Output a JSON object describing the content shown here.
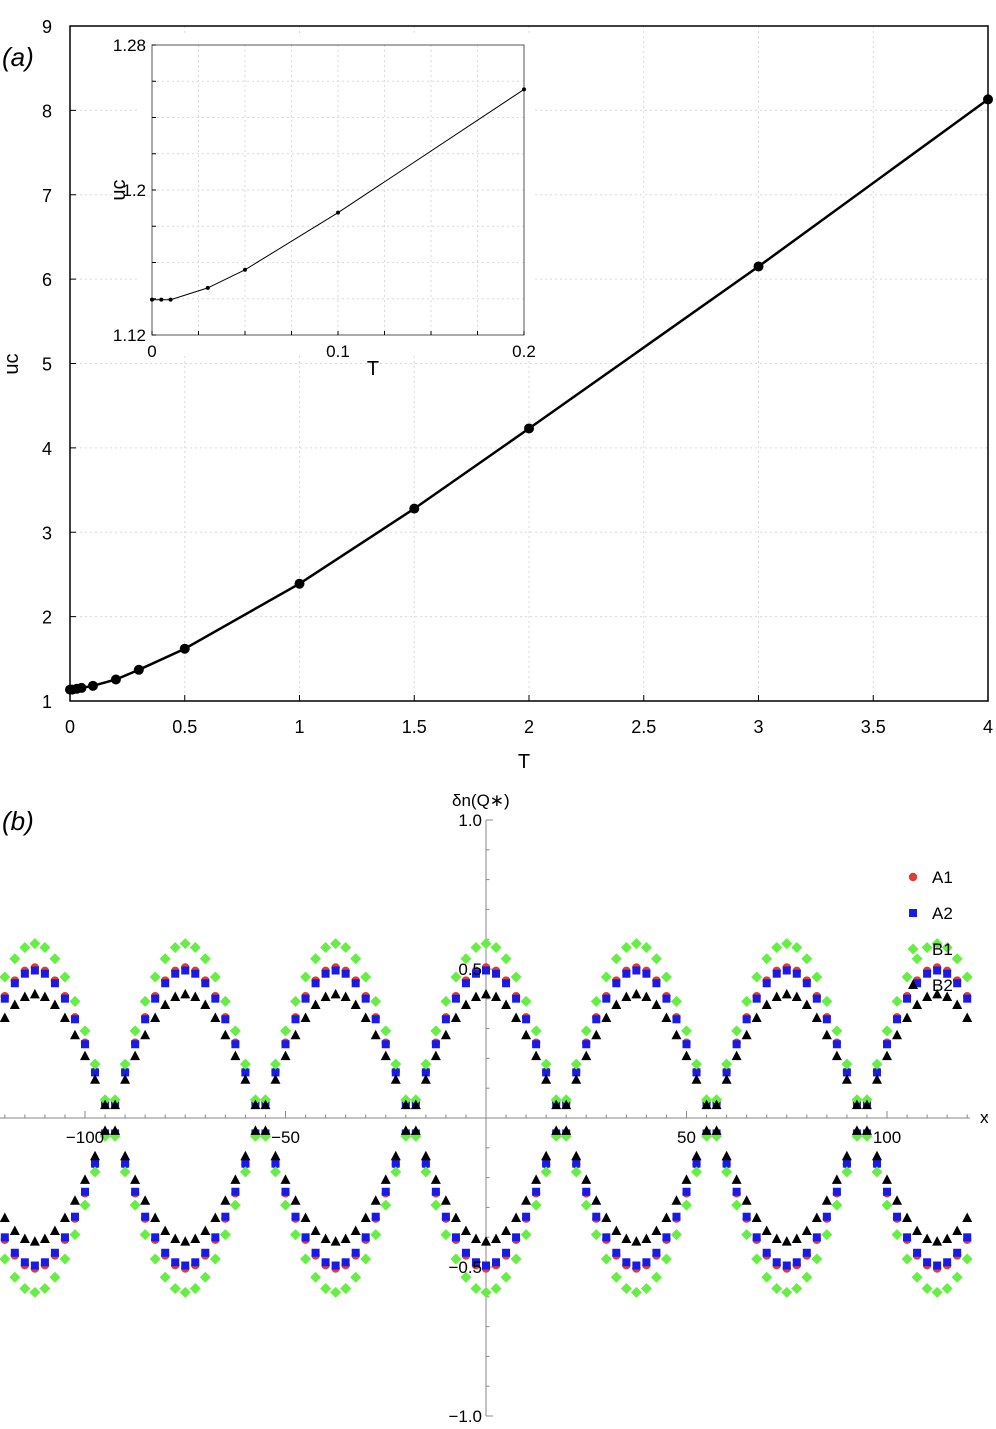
{
  "chart_data": [
    {
      "type": "line",
      "panel_label": "(a)",
      "xlabel": "T",
      "ylabel": "uc",
      "xlim": [
        0,
        4
      ],
      "ylim": [
        1,
        9
      ],
      "xticks": [
        "0",
        "0.5",
        "1",
        "1.5",
        "2",
        "2.5",
        "3",
        "3.5",
        "4"
      ],
      "yticks": [
        "1",
        "2",
        "3",
        "4",
        "5",
        "6",
        "7",
        "8",
        "9"
      ],
      "grid": true,
      "series": [
        {
          "x": [
            0,
            0.01,
            0.03,
            0.05,
            0.1,
            0.2,
            0.3,
            0.5,
            1,
            1.5,
            2,
            3,
            4
          ],
          "y": [
            1.135,
            1.135,
            1.145,
            1.155,
            1.18,
            1.255,
            1.37,
            1.62,
            2.39,
            3.28,
            4.23,
            6.15,
            8.13
          ]
        }
      ],
      "inset": {
        "type": "line",
        "xlabel": "T",
        "ylabel": "uc",
        "xlim": [
          0,
          0.2
        ],
        "ylim": [
          1.12,
          1.28
        ],
        "xticks": [
          "0",
          "0.1",
          "0.2"
        ],
        "yticks": [
          "1.12",
          "1.2",
          "1.28"
        ],
        "grid": true,
        "series": [
          {
            "x": [
              0,
              0.005,
              0.01,
              0.03,
              0.05,
              0.1,
              0.2
            ],
            "y": [
              1.1395,
              1.1395,
              1.1395,
              1.146,
              1.156,
              1.1875,
              1.2555
            ]
          }
        ]
      }
    },
    {
      "type": "scatter",
      "panel_label": "(b)",
      "xlabel": "x",
      "ylabel": "δn(Q∗)",
      "xlim": [
        -127,
        127
      ],
      "ylim": [
        -1.0,
        1.0
      ],
      "xticks": [
        "−100",
        "−50",
        "50",
        "100"
      ],
      "yticks": [
        "−1.0",
        "−0.5",
        "0.5",
        "1.0"
      ],
      "grid": false,
      "legend": "top-right",
      "wave_period": 75,
      "point_spacing": 2.5,
      "series": [
        {
          "name": "A1",
          "color": "#e03c31",
          "marker": "circle",
          "amplitude": 0.505,
          "phase_shift": 0
        },
        {
          "name": "A2",
          "color": "#1a1ae6",
          "marker": "square",
          "amplitude": 0.495,
          "phase_shift": 0
        },
        {
          "name": "B1",
          "color": "#66ee44",
          "marker": "diamond",
          "amplitude": 0.585,
          "phase_shift": 0
        },
        {
          "name": "B2",
          "color": "#000000",
          "marker": "triangle",
          "amplitude": 0.415,
          "phase_shift": 0
        }
      ]
    }
  ]
}
